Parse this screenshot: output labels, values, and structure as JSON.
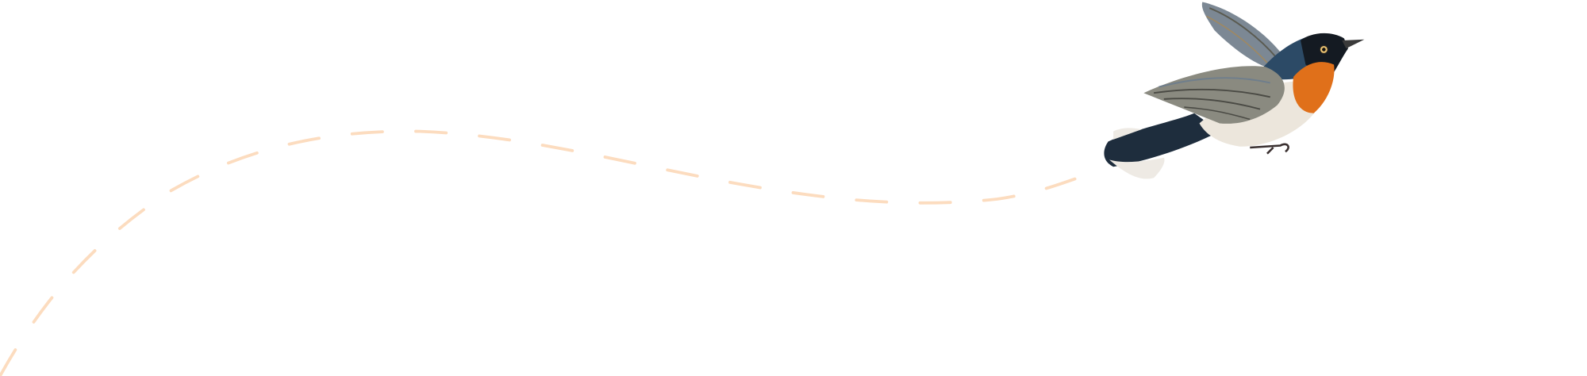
{
  "colors": {
    "background": "#ffffff",
    "flight_path": "#fcdcbf",
    "bird_back": "#1f3447",
    "bird_throat": "#e0701a",
    "bird_belly": "#ece6dc",
    "bird_wing": "#8a8a80"
  },
  "icons": {
    "bird": "bird-illustration",
    "path": "dashed-flight-path"
  }
}
